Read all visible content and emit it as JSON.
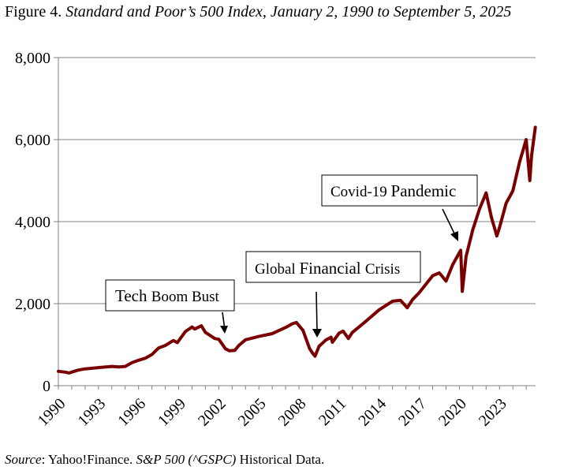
{
  "title": {
    "prefix": "Figure 4.",
    "italic": "Standard and Poor’s 500 Index, January 2, 1990 to September 5, 2025"
  },
  "source": {
    "label": "Source",
    "text1": ": Yahoo!Finance. ",
    "italic": "S&P 500 (^GSPC)",
    "text2": " Historical Data."
  },
  "colors": {
    "line": "#7a0000",
    "axis": "#808080",
    "grid": "#808080"
  },
  "chart_data": {
    "type": "line",
    "title": "Standard and Poor’s 500 Index, January 2, 1990 to September 5, 2025",
    "xlabel": "",
    "ylabel": "",
    "xlim": [
      1990,
      2025.7
    ],
    "ylim": [
      0,
      8000
    ],
    "grid": true,
    "y_ticks": [
      0,
      2000,
      4000,
      6000,
      8000
    ],
    "y_tick_labels": [
      "0",
      "2,000",
      "4,000",
      "6,000",
      "8,000"
    ],
    "x_ticks": [
      1990,
      1993,
      1996,
      1999,
      2002,
      2005,
      2008,
      2011,
      2014,
      2017,
      2020,
      2023
    ],
    "x_tick_labels": [
      "1990",
      "1993",
      "1996",
      "1999",
      "2002",
      "2005",
      "2008",
      "2011",
      "2014",
      "2017",
      "2020",
      "2023"
    ],
    "series": [
      {
        "name": "S&P 500",
        "x": [
          1990.0,
          1990.5,
          1990.8,
          1991.0,
          1991.5,
          1992.0,
          1993.0,
          1994.0,
          1994.5,
          1995.0,
          1995.5,
          1996.0,
          1996.5,
          1997.0,
          1997.5,
          1998.0,
          1998.6,
          1998.9,
          1999.5,
          2000.0,
          2000.2,
          2000.7,
          2001.0,
          2001.7,
          2002.0,
          2002.5,
          2002.8,
          2003.2,
          2003.5,
          2004.0,
          2005.0,
          2006.0,
          2007.0,
          2007.5,
          2007.8,
          2008.3,
          2008.8,
          2009.0,
          2009.2,
          2009.5,
          2010.0,
          2010.4,
          2010.5,
          2011.0,
          2011.3,
          2011.7,
          2012.0,
          2013.0,
          2014.0,
          2015.0,
          2015.6,
          2016.1,
          2016.5,
          2017.0,
          2018.0,
          2018.5,
          2019.0,
          2019.5,
          2020.1,
          2020.22,
          2020.5,
          2021.0,
          2021.5,
          2022.0,
          2022.4,
          2022.8,
          2023.0,
          2023.5,
          2024.0,
          2024.5,
          2025.0,
          2025.27,
          2025.4,
          2025.6,
          2025.68
        ],
        "values": [
          350,
          330,
          310,
          330,
          380,
          410,
          440,
          470,
          455,
          470,
          560,
          620,
          670,
          760,
          920,
          980,
          1100,
          1050,
          1320,
          1430,
          1380,
          1460,
          1300,
          1150,
          1130,
          900,
          850,
          860,
          980,
          1120,
          1200,
          1270,
          1420,
          1510,
          1540,
          1350,
          900,
          800,
          720,
          960,
          1110,
          1180,
          1060,
          1280,
          1330,
          1150,
          1300,
          1570,
          1850,
          2060,
          2080,
          1900,
          2100,
          2270,
          2680,
          2750,
          2550,
          2950,
          3300,
          2300,
          3150,
          3800,
          4300,
          4700,
          4100,
          3650,
          3850,
          4450,
          4750,
          5450,
          6000,
          5000,
          5600,
          6100,
          6300
        ]
      }
    ],
    "annotations": [
      {
        "text_a": "Tech ",
        "text_b": "Boom Bust",
        "target_x": 2002.6,
        "target_y": 1150
      },
      {
        "text_a": "Global ",
        "text_b": "Financial ",
        "text_c": "Crisis",
        "target_x": 2009.3,
        "target_y": 1180
      },
      {
        "text_a": "Covid-19 ",
        "text_b": "Pandemic",
        "target_x": 2020.1,
        "target_y": 3550
      }
    ]
  }
}
